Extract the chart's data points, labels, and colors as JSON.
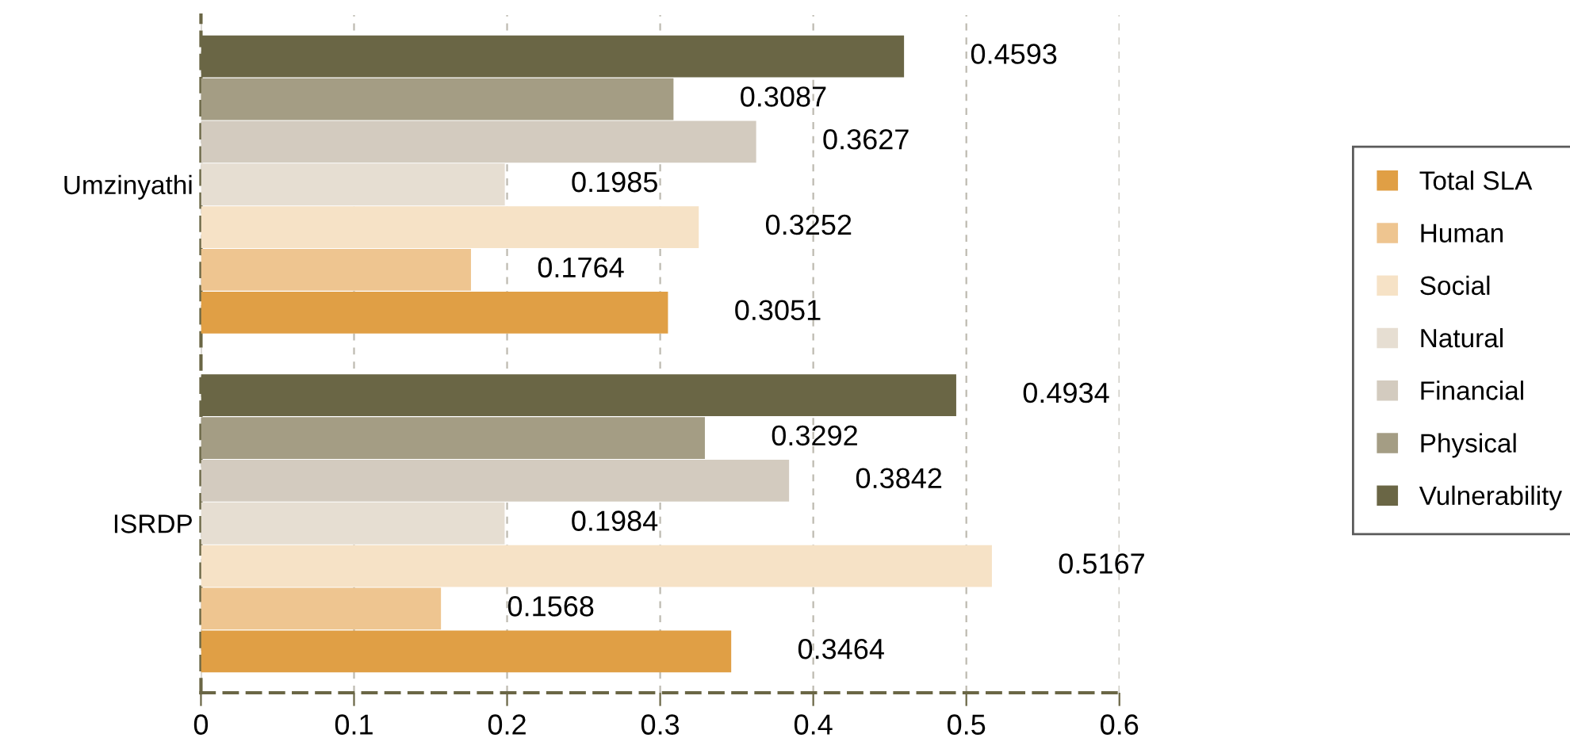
{
  "chart_data": {
    "type": "bar",
    "orientation": "horizontal",
    "categories": [
      "Umzinyathi",
      "ISRDP"
    ],
    "series": [
      {
        "name": "Total SLA",
        "color": "#e09f45",
        "values": [
          0.3051,
          0.3464
        ]
      },
      {
        "name": "Human",
        "color": "#eec590",
        "values": [
          0.1764,
          0.1568
        ]
      },
      {
        "name": "Social",
        "color": "#f6e2c6",
        "values": [
          0.3252,
          0.5167
        ]
      },
      {
        "name": "Natural",
        "color": "#e6ded2",
        "values": [
          0.1985,
          0.1984
        ]
      },
      {
        "name": "Financial",
        "color": "#d3cbbf",
        "values": [
          0.3627,
          0.3842
        ]
      },
      {
        "name": "Physical",
        "color": "#a49d84",
        "values": [
          0.3087,
          0.3292
        ]
      },
      {
        "name": "Vulnerability",
        "color": "#6a6645",
        "values": [
          0.4593,
          0.4934
        ]
      }
    ],
    "xlim": [
      0,
      0.6
    ],
    "xticks": [
      0,
      0.1,
      0.2,
      0.3,
      0.4,
      0.5,
      0.6
    ],
    "grid": "x",
    "legend": "right",
    "data_labels": true
  }
}
